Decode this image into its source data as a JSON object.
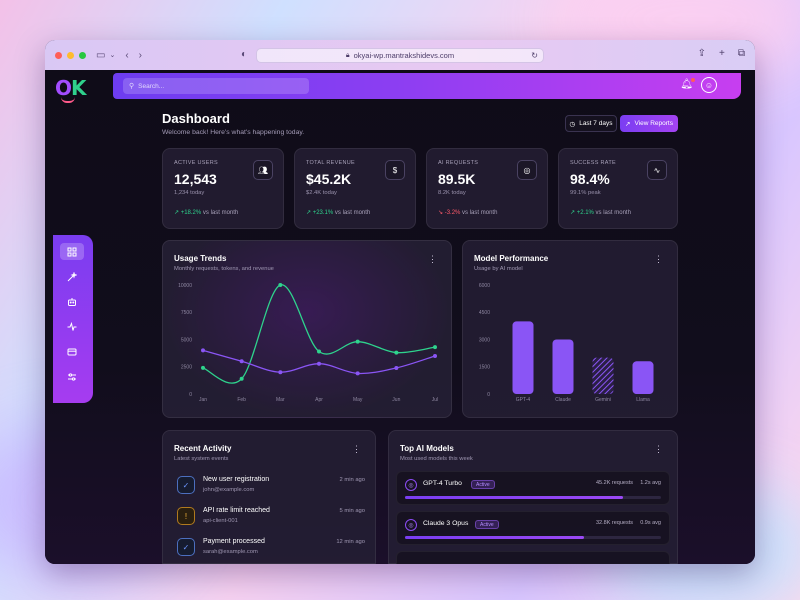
{
  "browser": {
    "url": "okyai-wp.mantrakshidevs.com"
  },
  "colors": {
    "accent": "#7b3ef2",
    "positive": "#2ed38d",
    "negative": "#ff5a6a",
    "line_green": "#2ed38d",
    "line_purple": "#8a55f5"
  },
  "header": {
    "search_placeholder": "Search..."
  },
  "page": {
    "title": "Dashboard",
    "subtitle": "Welcome back! Here's what's happening today.",
    "range_label": "Last 7 days",
    "report_label": "View Reports"
  },
  "nav": [
    {
      "icon": "grid-icon"
    },
    {
      "icon": "magic-wand-icon"
    },
    {
      "icon": "robot-icon"
    },
    {
      "icon": "activity-icon"
    },
    {
      "icon": "credit-card-icon"
    },
    {
      "icon": "sliders-icon"
    }
  ],
  "stats": [
    {
      "label": "ACTIVE USERS",
      "value": "12,543",
      "meta": "1,234 today",
      "change": "+18.2%",
      "direction": "up",
      "suffix": " vs last month",
      "icon": "users-icon"
    },
    {
      "label": "TOTAL REVENUE",
      "value": "$45.2K",
      "meta": "$2.4K today",
      "change": "+23.1%",
      "direction": "up",
      "suffix": " vs last month",
      "icon": "dollar-icon"
    },
    {
      "label": "AI REQUESTS",
      "value": "89.5K",
      "meta": "8.2K today",
      "change": "-3.2%",
      "direction": "down",
      "suffix": " vs last month",
      "icon": "cpu-icon"
    },
    {
      "label": "SUCCESS RATE",
      "value": "98.4%",
      "meta": "99.1% peak",
      "change": "+2.1%",
      "direction": "up",
      "suffix": " vs last month",
      "icon": "pulse-icon"
    }
  ],
  "usage": {
    "title": "Usage Trends",
    "subtitle": "Monthly requests, tokens, and revenue"
  },
  "models_perf": {
    "title": "Model Performance",
    "subtitle": "Usage by AI model"
  },
  "chart_data": [
    {
      "type": "line",
      "x": [
        "Jan",
        "Feb",
        "Mar",
        "Apr",
        "May",
        "Jun",
        "Jul"
      ],
      "series": [
        {
          "values": [
            2400,
            1400,
            10000,
            3900,
            4800,
            3800,
            4300
          ]
        },
        {
          "values": [
            4000,
            3000,
            2000,
            2780,
            1890,
            2390,
            3490
          ]
        }
      ],
      "yticks": [
        0,
        2500,
        5000,
        7500,
        10000
      ],
      "ylim": [
        0,
        10000
      ],
      "grid": false
    },
    {
      "type": "bar",
      "categories": [
        "GPT-4",
        "Claude",
        "Gemini",
        "Llama"
      ],
      "values": [
        4000,
        3000,
        2000,
        1800
      ],
      "yticks": [
        0,
        1500,
        3000,
        4500,
        6000
      ],
      "ylim": [
        0,
        6000
      ],
      "grid": false
    }
  ],
  "activity": {
    "title": "Recent Activity",
    "subtitle": "Latest system events",
    "items": [
      {
        "title": "New user registration",
        "sub": "john@example.com",
        "time": "2 min ago",
        "icon": "check-circle-icon",
        "tone": "blue"
      },
      {
        "title": "API rate limit reached",
        "sub": "api-client-001",
        "time": "5 min ago",
        "icon": "alert-icon",
        "tone": "amber"
      },
      {
        "title": "Payment processed",
        "sub": "sarah@example.com",
        "time": "12 min ago",
        "icon": "check-circle-icon",
        "tone": "blue"
      }
    ]
  },
  "top_models": {
    "title": "Top AI Models",
    "subtitle": "Most used models this week",
    "items": [
      {
        "name": "GPT-4 Turbo",
        "status": "Active",
        "requests": "45.2K requests",
        "avg": "1.2s avg",
        "share": 0.85
      },
      {
        "name": "Claude 3 Opus",
        "status": "Active",
        "requests": "32.8K requests",
        "avg": "0.9s avg",
        "share": 0.7
      }
    ]
  }
}
